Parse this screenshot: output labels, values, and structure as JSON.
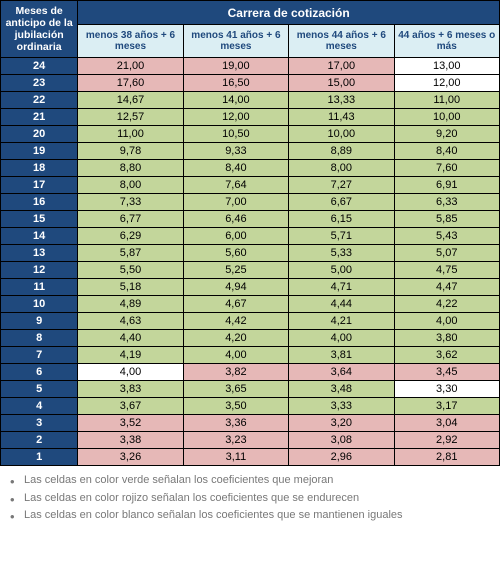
{
  "colors": {
    "header_bg": "#1f497d",
    "header_fg": "#ffffff",
    "subhead_bg": "#dbeef3",
    "subhead_fg": "#1f497d",
    "green": "#c3d69b",
    "pink": "#e6b8b7",
    "white": "#ffffff",
    "legend_fg": "#787878",
    "border": "#000000"
  },
  "table": {
    "left_header": "Meses de anticipo de la jubilación ordinaria",
    "top_title": "Carrera de cotización",
    "col_width_left": 77,
    "col_width_data": 105,
    "columns": [
      "menos 38 años + 6 meses",
      "menos 41 años + 6 meses",
      "menos 44 años + 6 meses",
      "44 años + 6 meses o más"
    ],
    "rows": [
      {
        "label": "24",
        "cells": [
          {
            "v": "21,00",
            "c": "pink"
          },
          {
            "v": "19,00",
            "c": "pink"
          },
          {
            "v": "17,00",
            "c": "pink"
          },
          {
            "v": "13,00",
            "c": "white"
          }
        ]
      },
      {
        "label": "23",
        "cells": [
          {
            "v": "17,60",
            "c": "pink"
          },
          {
            "v": "16,50",
            "c": "pink"
          },
          {
            "v": "15,00",
            "c": "pink"
          },
          {
            "v": "12,00",
            "c": "white"
          }
        ]
      },
      {
        "label": "22",
        "cells": [
          {
            "v": "14,67",
            "c": "green"
          },
          {
            "v": "14,00",
            "c": "green"
          },
          {
            "v": "13,33",
            "c": "green"
          },
          {
            "v": "11,00",
            "c": "green"
          }
        ]
      },
      {
        "label": "21",
        "cells": [
          {
            "v": "12,57",
            "c": "green"
          },
          {
            "v": "12,00",
            "c": "green"
          },
          {
            "v": "11,43",
            "c": "green"
          },
          {
            "v": "10,00",
            "c": "green"
          }
        ]
      },
      {
        "label": "20",
        "cells": [
          {
            "v": "11,00",
            "c": "green"
          },
          {
            "v": "10,50",
            "c": "green"
          },
          {
            "v": "10,00",
            "c": "green"
          },
          {
            "v": "9,20",
            "c": "green"
          }
        ]
      },
      {
        "label": "19",
        "cells": [
          {
            "v": "9,78",
            "c": "green"
          },
          {
            "v": "9,33",
            "c": "green"
          },
          {
            "v": "8,89",
            "c": "green"
          },
          {
            "v": "8,40",
            "c": "green"
          }
        ]
      },
      {
        "label": "18",
        "cells": [
          {
            "v": "8,80",
            "c": "green"
          },
          {
            "v": "8,40",
            "c": "green"
          },
          {
            "v": "8,00",
            "c": "green"
          },
          {
            "v": "7,60",
            "c": "green"
          }
        ]
      },
      {
        "label": "17",
        "cells": [
          {
            "v": "8,00",
            "c": "green"
          },
          {
            "v": "7,64",
            "c": "green"
          },
          {
            "v": "7,27",
            "c": "green"
          },
          {
            "v": "6,91",
            "c": "green"
          }
        ]
      },
      {
        "label": "16",
        "cells": [
          {
            "v": "7,33",
            "c": "green"
          },
          {
            "v": "7,00",
            "c": "green"
          },
          {
            "v": "6,67",
            "c": "green"
          },
          {
            "v": "6,33",
            "c": "green"
          }
        ]
      },
      {
        "label": "15",
        "cells": [
          {
            "v": "6,77",
            "c": "green"
          },
          {
            "v": "6,46",
            "c": "green"
          },
          {
            "v": "6,15",
            "c": "green"
          },
          {
            "v": "5,85",
            "c": "green"
          }
        ]
      },
      {
        "label": "14",
        "cells": [
          {
            "v": "6,29",
            "c": "green"
          },
          {
            "v": "6,00",
            "c": "green"
          },
          {
            "v": "5,71",
            "c": "green"
          },
          {
            "v": "5,43",
            "c": "green"
          }
        ]
      },
      {
        "label": "13",
        "cells": [
          {
            "v": "5,87",
            "c": "green"
          },
          {
            "v": "5,60",
            "c": "green"
          },
          {
            "v": "5,33",
            "c": "green"
          },
          {
            "v": "5,07",
            "c": "green"
          }
        ]
      },
      {
        "label": "12",
        "cells": [
          {
            "v": "5,50",
            "c": "green"
          },
          {
            "v": "5,25",
            "c": "green"
          },
          {
            "v": "5,00",
            "c": "green"
          },
          {
            "v": "4,75",
            "c": "green"
          }
        ]
      },
      {
        "label": "11",
        "cells": [
          {
            "v": "5,18",
            "c": "green"
          },
          {
            "v": "4,94",
            "c": "green"
          },
          {
            "v": "4,71",
            "c": "green"
          },
          {
            "v": "4,47",
            "c": "green"
          }
        ]
      },
      {
        "label": "10",
        "cells": [
          {
            "v": "4,89",
            "c": "green"
          },
          {
            "v": "4,67",
            "c": "green"
          },
          {
            "v": "4,44",
            "c": "green"
          },
          {
            "v": "4,22",
            "c": "green"
          }
        ]
      },
      {
        "label": "9",
        "cells": [
          {
            "v": "4,63",
            "c": "green"
          },
          {
            "v": "4,42",
            "c": "green"
          },
          {
            "v": "4,21",
            "c": "green"
          },
          {
            "v": "4,00",
            "c": "green"
          }
        ]
      },
      {
        "label": "8",
        "cells": [
          {
            "v": "4,40",
            "c": "green"
          },
          {
            "v": "4,20",
            "c": "green"
          },
          {
            "v": "4,00",
            "c": "green"
          },
          {
            "v": "3,80",
            "c": "green"
          }
        ]
      },
      {
        "label": "7",
        "cells": [
          {
            "v": "4,19",
            "c": "green"
          },
          {
            "v": "4,00",
            "c": "green"
          },
          {
            "v": "3,81",
            "c": "green"
          },
          {
            "v": "3,62",
            "c": "green"
          }
        ]
      },
      {
        "label": "6",
        "cells": [
          {
            "v": "4,00",
            "c": "white"
          },
          {
            "v": "3,82",
            "c": "pink"
          },
          {
            "v": "3,64",
            "c": "pink"
          },
          {
            "v": "3,45",
            "c": "pink"
          }
        ]
      },
      {
        "label": "5",
        "cells": [
          {
            "v": "3,83",
            "c": "green"
          },
          {
            "v": "3,65",
            "c": "green"
          },
          {
            "v": "3,48",
            "c": "green"
          },
          {
            "v": "3,30",
            "c": "white"
          }
        ]
      },
      {
        "label": "4",
        "cells": [
          {
            "v": "3,67",
            "c": "green"
          },
          {
            "v": "3,50",
            "c": "green"
          },
          {
            "v": "3,33",
            "c": "green"
          },
          {
            "v": "3,17",
            "c": "green"
          }
        ]
      },
      {
        "label": "3",
        "cells": [
          {
            "v": "3,52",
            "c": "pink"
          },
          {
            "v": "3,36",
            "c": "pink"
          },
          {
            "v": "3,20",
            "c": "pink"
          },
          {
            "v": "3,04",
            "c": "pink"
          }
        ]
      },
      {
        "label": "2",
        "cells": [
          {
            "v": "3,38",
            "c": "pink"
          },
          {
            "v": "3,23",
            "c": "pink"
          },
          {
            "v": "3,08",
            "c": "pink"
          },
          {
            "v": "2,92",
            "c": "pink"
          }
        ]
      },
      {
        "label": "1",
        "cells": [
          {
            "v": "3,26",
            "c": "pink"
          },
          {
            "v": "3,11",
            "c": "pink"
          },
          {
            "v": "2,96",
            "c": "pink"
          },
          {
            "v": "2,81",
            "c": "pink"
          }
        ]
      }
    ]
  },
  "legend": [
    "Las celdas en color verde señalan los coeficientes que mejoran",
    "Las celdas en color rojizo señalan los coeficientes que se endurecen",
    "Las celdas en color blanco señalan los coeficientes que se mantienen iguales"
  ]
}
